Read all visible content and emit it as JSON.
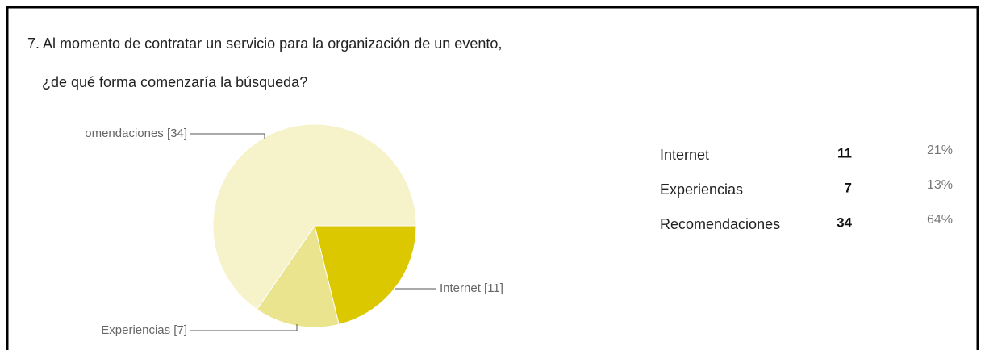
{
  "chart_data": {
    "type": "pie",
    "title": "7. Al momento de contratar un servicio para la organización de un evento,",
    "subtitle": "¿de qué forma comenzaría la búsqueda?",
    "categories": [
      "Internet",
      "Experiencias",
      "Recomendaciones"
    ],
    "values": [
      11,
      7,
      34
    ],
    "value_labels": [
      "Internet [11]",
      "Experiencias [7]",
      "omendaciones [34]"
    ],
    "colors": [
      "#dcc800",
      "#ebe48e",
      "#f6f2c9"
    ]
  },
  "table": {
    "rows": [
      [
        "Internet",
        "11",
        "21%"
      ],
      [
        "Experiencias",
        "7",
        "13%"
      ],
      [
        "Recomendaciones",
        "34",
        "64%"
      ]
    ]
  }
}
